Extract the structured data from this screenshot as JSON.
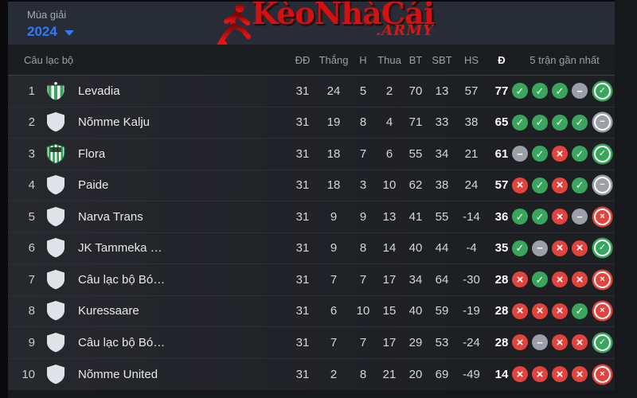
{
  "topbar": {
    "season_label": "Mùa giải",
    "season_value": "2024"
  },
  "brand": {
    "name": "KèoNhàCái",
    "suffix": ".ARMY"
  },
  "colors": {
    "accent_blue": "#2f7bf5",
    "brand_red": "#d41111",
    "win_green": "#3aa55d",
    "draw_gray": "#9ba0a8",
    "loss_red": "#e2433c"
  },
  "table": {
    "headers": {
      "club": "Câu lạc bộ",
      "played": "ĐĐ",
      "wins": "Thắng",
      "draws": "H",
      "losses": "Thua",
      "goals_for": "BT",
      "goals_against": "SBT",
      "goal_diff": "HS",
      "points": "Đ",
      "form": "5 trận gần nhất"
    },
    "rows": [
      {
        "rank": 1,
        "club": "Levadia",
        "crest": "levadia",
        "played": 31,
        "wins": 24,
        "draws": 5,
        "losses": 2,
        "gf": 70,
        "ga": 13,
        "gd": 57,
        "points": 77,
        "form": [
          "w",
          "w",
          "w",
          "d",
          "w"
        ]
      },
      {
        "rank": 2,
        "club": "Nõmme Kalju",
        "crest": "generic",
        "played": 31,
        "wins": 19,
        "draws": 8,
        "losses": 4,
        "gf": 71,
        "ga": 33,
        "gd": 38,
        "points": 65,
        "form": [
          "w",
          "w",
          "w",
          "w",
          "d"
        ]
      },
      {
        "rank": 3,
        "club": "Flora",
        "crest": "flora",
        "played": 31,
        "wins": 18,
        "draws": 7,
        "losses": 6,
        "gf": 55,
        "ga": 34,
        "gd": 21,
        "points": 61,
        "form": [
          "d",
          "w",
          "l",
          "w",
          "w"
        ]
      },
      {
        "rank": 4,
        "club": "Paide",
        "crest": "generic",
        "played": 31,
        "wins": 18,
        "draws": 3,
        "losses": 10,
        "gf": 62,
        "ga": 38,
        "gd": 24,
        "points": 57,
        "form": [
          "l",
          "w",
          "l",
          "w",
          "d"
        ]
      },
      {
        "rank": 5,
        "club": "Narva Trans",
        "crest": "generic",
        "played": 31,
        "wins": 9,
        "draws": 9,
        "losses": 13,
        "gf": 41,
        "ga": 55,
        "gd": -14,
        "points": 36,
        "form": [
          "w",
          "w",
          "l",
          "d",
          "l"
        ]
      },
      {
        "rank": 6,
        "club": "JK Tammeka …",
        "crest": "generic",
        "played": 31,
        "wins": 9,
        "draws": 8,
        "losses": 14,
        "gf": 40,
        "ga": 44,
        "gd": -4,
        "points": 35,
        "form": [
          "w",
          "d",
          "l",
          "l",
          "w"
        ]
      },
      {
        "rank": 7,
        "club": "Câu lạc bộ Bó…",
        "crest": "generic",
        "played": 31,
        "wins": 7,
        "draws": 7,
        "losses": 17,
        "gf": 34,
        "ga": 64,
        "gd": -30,
        "points": 28,
        "form": [
          "l",
          "w",
          "l",
          "l",
          "l"
        ]
      },
      {
        "rank": 8,
        "club": "Kuressaare",
        "crest": "generic",
        "played": 31,
        "wins": 6,
        "draws": 10,
        "losses": 15,
        "gf": 40,
        "ga": 59,
        "gd": -19,
        "points": 28,
        "form": [
          "l",
          "l",
          "l",
          "w",
          "l"
        ]
      },
      {
        "rank": 9,
        "club": "Câu lạc bộ Bó…",
        "crest": "generic",
        "played": 31,
        "wins": 7,
        "draws": 7,
        "losses": 17,
        "gf": 29,
        "ga": 53,
        "gd": -24,
        "points": 28,
        "form": [
          "l",
          "d",
          "l",
          "l",
          "w"
        ]
      },
      {
        "rank": 10,
        "club": "Nõmme United",
        "crest": "generic",
        "played": 31,
        "wins": 2,
        "draws": 8,
        "losses": 21,
        "gf": 20,
        "ga": 69,
        "gd": -49,
        "points": 14,
        "form": [
          "l",
          "l",
          "l",
          "l",
          "l"
        ]
      }
    ]
  }
}
